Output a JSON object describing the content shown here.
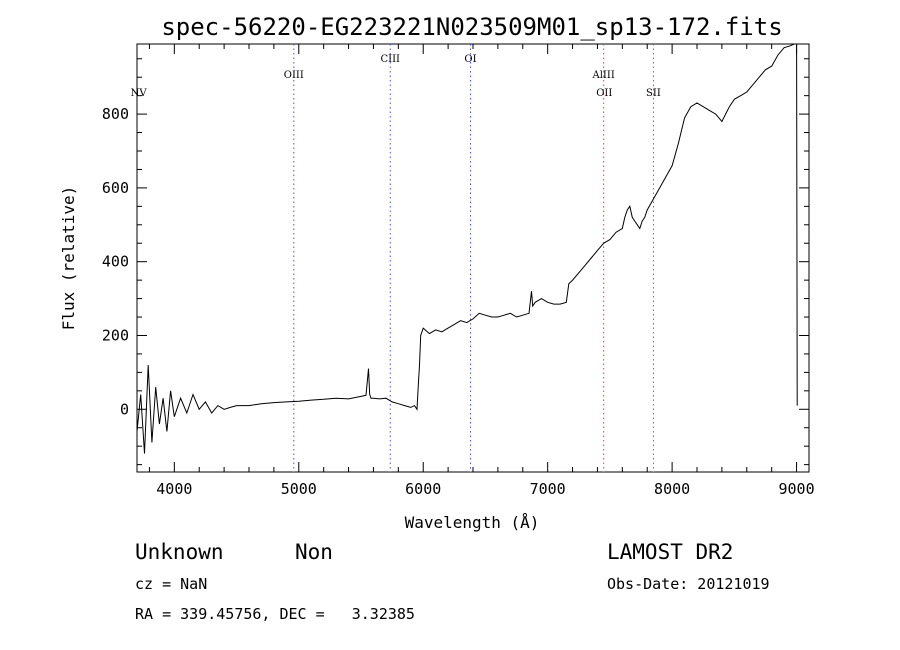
{
  "chart_data": {
    "type": "line",
    "title": "spec-56220-EG223221N023509M01_sp13-172.fits",
    "xlabel": "Wavelength (Å)",
    "ylabel": "Flux (relative)",
    "xlim": [
      3700,
      9100
    ],
    "ylim": [
      -170,
      990
    ],
    "x_ticks": [
      4000,
      5000,
      6000,
      7000,
      8000,
      9000
    ],
    "y_ticks": [
      0,
      200,
      400,
      600,
      800
    ],
    "grid": false,
    "legend": "none",
    "series": [
      {
        "x": [
          3700,
          3730,
          3760,
          3790,
          3820,
          3850,
          3880,
          3910,
          3940,
          3970,
          4000,
          4050,
          4100,
          4150,
          4200,
          4250,
          4300,
          4350,
          4400,
          4450,
          4500,
          4600,
          4700,
          4800,
          4900,
          5000,
          5100,
          5200,
          5300,
          5400,
          5500,
          5540,
          5560,
          5570,
          5580,
          5600,
          5650,
          5700,
          5750,
          5800,
          5850,
          5900,
          5930,
          5950,
          5960,
          5970,
          5980,
          6000,
          6050,
          6100,
          6150,
          6200,
          6250,
          6300,
          6350,
          6400,
          6450,
          6500,
          6550,
          6600,
          6650,
          6700,
          6750,
          6800,
          6850,
          6870,
          6880,
          6900,
          6950,
          7000,
          7050,
          7100,
          7150,
          7170,
          7200,
          7250,
          7300,
          7350,
          7400,
          7450,
          7500,
          7550,
          7600,
          7620,
          7640,
          7660,
          7680,
          7700,
          7720,
          7740,
          7760,
          7780,
          7800,
          7850,
          7900,
          7950,
          8000,
          8050,
          8100,
          8150,
          8200,
          8250,
          8300,
          8350,
          8400,
          8430,
          8460,
          8500,
          8550,
          8600,
          8650,
          8700,
          8750,
          8800,
          8850,
          8900,
          8950,
          8980,
          9000,
          9005
        ],
        "y": [
          -60,
          40,
          -120,
          120,
          -90,
          60,
          -40,
          30,
          -60,
          50,
          -20,
          30,
          -10,
          40,
          0,
          20,
          -10,
          10,
          0,
          5,
          10,
          10,
          15,
          18,
          20,
          22,
          25,
          27,
          30,
          28,
          35,
          38,
          110,
          40,
          30,
          30,
          28,
          30,
          20,
          15,
          10,
          5,
          10,
          0,
          60,
          120,
          200,
          220,
          205,
          215,
          210,
          220,
          230,
          240,
          235,
          245,
          260,
          255,
          250,
          250,
          255,
          260,
          250,
          255,
          260,
          320,
          280,
          290,
          300,
          290,
          285,
          285,
          290,
          340,
          350,
          370,
          390,
          410,
          430,
          450,
          460,
          480,
          490,
          520,
          540,
          550,
          520,
          510,
          500,
          490,
          510,
          520,
          540,
          570,
          600,
          630,
          660,
          720,
          790,
          820,
          830,
          820,
          810,
          800,
          780,
          800,
          820,
          840,
          850,
          860,
          880,
          900,
          920,
          930,
          960,
          980,
          985,
          1000,
          990,
          10
        ],
        "color": "#000000"
      }
    ],
    "lines": [
      {
        "label": "NV",
        "wavelength": 3713,
        "color": "#000000"
      },
      {
        "label": "OIII",
        "wavelength": 4960,
        "color": "#4d4dff"
      },
      {
        "label": "CIII",
        "wavelength": 5735,
        "color": "#4d4dff"
      },
      {
        "label": "OI",
        "wavelength": 6380,
        "color": "#4d4dff"
      },
      {
        "label": "AlIII",
        "wavelength": 7450,
        "color": "#ff3333"
      },
      {
        "label": "OII",
        "wavelength": 7455,
        "color": "#ff3333"
      },
      {
        "label": "SII",
        "wavelength": 7850,
        "color": "#ff3333"
      }
    ]
  },
  "info": {
    "class": "Unknown",
    "subclass": "Non",
    "cz": "cz = NaN",
    "coords": "RA = 339.45756, DEC =   3.32385",
    "survey": "LAMOST DR2",
    "obs_date": "Obs-Date: 20121019"
  }
}
